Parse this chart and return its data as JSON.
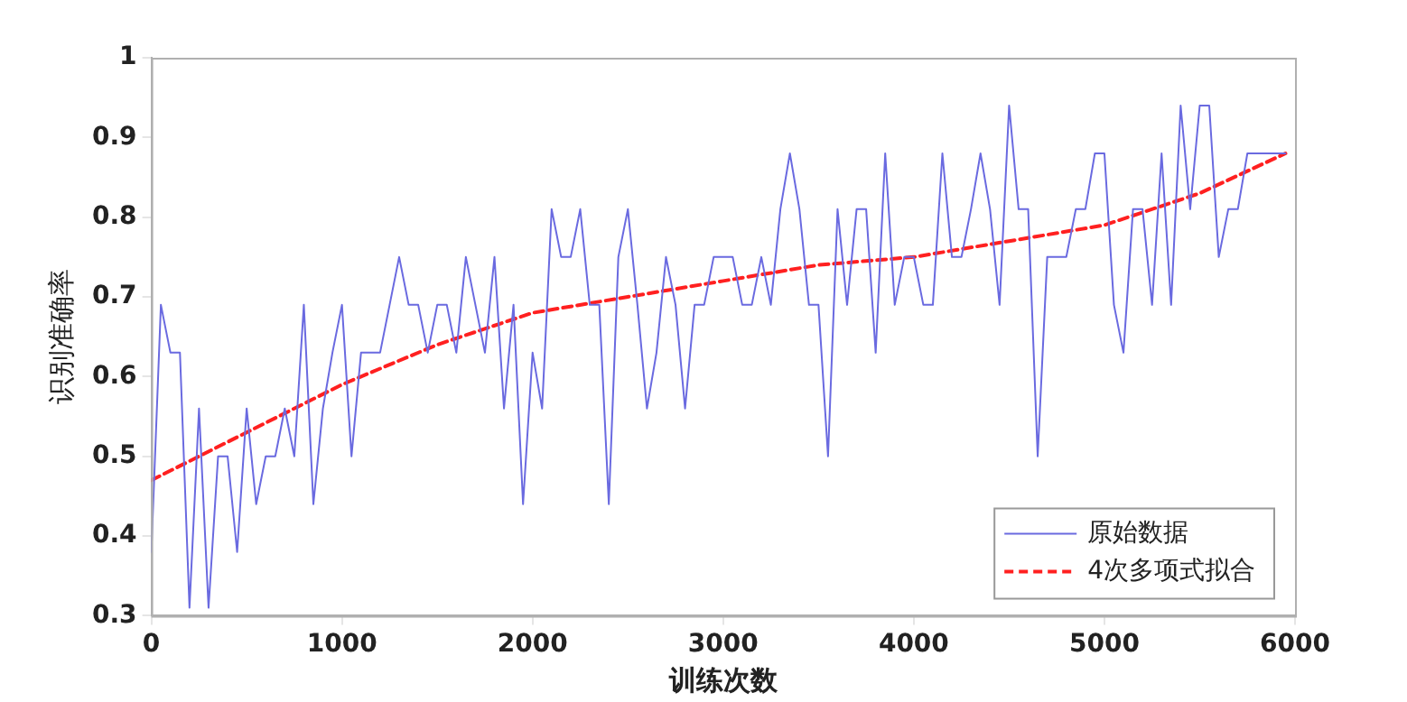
{
  "chart_data": {
    "type": "line",
    "xlabel": "训练次数",
    "ylabel": "识别准确率",
    "xlim": [
      0,
      6000
    ],
    "xticks": [
      0,
      1000,
      2000,
      3000,
      4000,
      5000,
      6000
    ],
    "ylim": [
      0.3,
      1
    ],
    "yticks": [
      0.3,
      0.4,
      0.5,
      0.6,
      0.7,
      0.8,
      0.9,
      1
    ],
    "grid": false,
    "legend": "bottom right",
    "marker": "none",
    "series": [
      {
        "name": "原始数据",
        "line_style": "solid",
        "color": "#6a6ae0",
        "x": [
          0,
          50,
          100,
          150,
          200,
          250,
          300,
          350,
          400,
          450,
          500,
          550,
          600,
          650,
          700,
          750,
          800,
          850,
          900,
          950,
          1000,
          1050,
          1100,
          1150,
          1200,
          1250,
          1300,
          1350,
          1400,
          1450,
          1500,
          1550,
          1600,
          1650,
          1700,
          1750,
          1800,
          1850,
          1900,
          1950,
          2000,
          2050,
          2100,
          2150,
          2200,
          2250,
          2300,
          2350,
          2400,
          2450,
          2500,
          2550,
          2600,
          2650,
          2700,
          2750,
          2800,
          2850,
          2900,
          2950,
          3000,
          3050,
          3100,
          3150,
          3200,
          3250,
          3300,
          3350,
          3400,
          3450,
          3500,
          3550,
          3600,
          3650,
          3700,
          3750,
          3800,
          3850,
          3900,
          3950,
          4000,
          4050,
          4100,
          4150,
          4200,
          4250,
          4300,
          4350,
          4400,
          4450,
          4500,
          4550,
          4600,
          4650,
          4700,
          4750,
          4800,
          4850,
          4900,
          4950,
          5000,
          5050,
          5100,
          5150,
          5200,
          5250,
          5300,
          5350,
          5400,
          5450,
          5500,
          5550,
          5600,
          5650,
          5700,
          5750,
          5800,
          5850,
          5900,
          5950
        ],
        "values": [
          0.38,
          0.69,
          0.63,
          0.63,
          0.31,
          0.56,
          0.31,
          0.5,
          0.5,
          0.38,
          0.56,
          0.44,
          0.5,
          0.5,
          0.56,
          0.5,
          0.69,
          0.44,
          0.56,
          0.63,
          0.69,
          0.5,
          0.63,
          0.63,
          0.63,
          0.69,
          0.75,
          0.69,
          0.69,
          0.63,
          0.69,
          0.69,
          0.63,
          0.75,
          0.69,
          0.63,
          0.75,
          0.56,
          0.69,
          0.44,
          0.63,
          0.56,
          0.81,
          0.75,
          0.75,
          0.81,
          0.69,
          0.69,
          0.44,
          0.75,
          0.81,
          0.69,
          0.56,
          0.63,
          0.75,
          0.69,
          0.56,
          0.69,
          0.69,
          0.75,
          0.75,
          0.75,
          0.69,
          0.69,
          0.75,
          0.69,
          0.81,
          0.88,
          0.81,
          0.69,
          0.69,
          0.5,
          0.81,
          0.69,
          0.81,
          0.81,
          0.63,
          0.88,
          0.69,
          0.75,
          0.75,
          0.69,
          0.69,
          0.88,
          0.75,
          0.75,
          0.81,
          0.88,
          0.81,
          0.69,
          0.94,
          0.81,
          0.81,
          0.5,
          0.75,
          0.75,
          0.75,
          0.81,
          0.81,
          0.88,
          0.88,
          0.69,
          0.63,
          0.81,
          0.81,
          0.69,
          0.88,
          0.69,
          0.94,
          0.81,
          0.94,
          0.94,
          0.75,
          0.81,
          0.81,
          0.88,
          0.88,
          0.88,
          0.88,
          0.88
        ]
      },
      {
        "name": "4次多项式拟合",
        "line_style": "dashed",
        "color": "#ff2020",
        "x": [
          0,
          500,
          1000,
          1500,
          2000,
          2500,
          3000,
          3500,
          4000,
          4500,
          5000,
          5500,
          5950
        ],
        "values": [
          0.47,
          0.53,
          0.59,
          0.64,
          0.68,
          0.7,
          0.72,
          0.74,
          0.75,
          0.77,
          0.79,
          0.83,
          0.88
        ]
      }
    ]
  }
}
